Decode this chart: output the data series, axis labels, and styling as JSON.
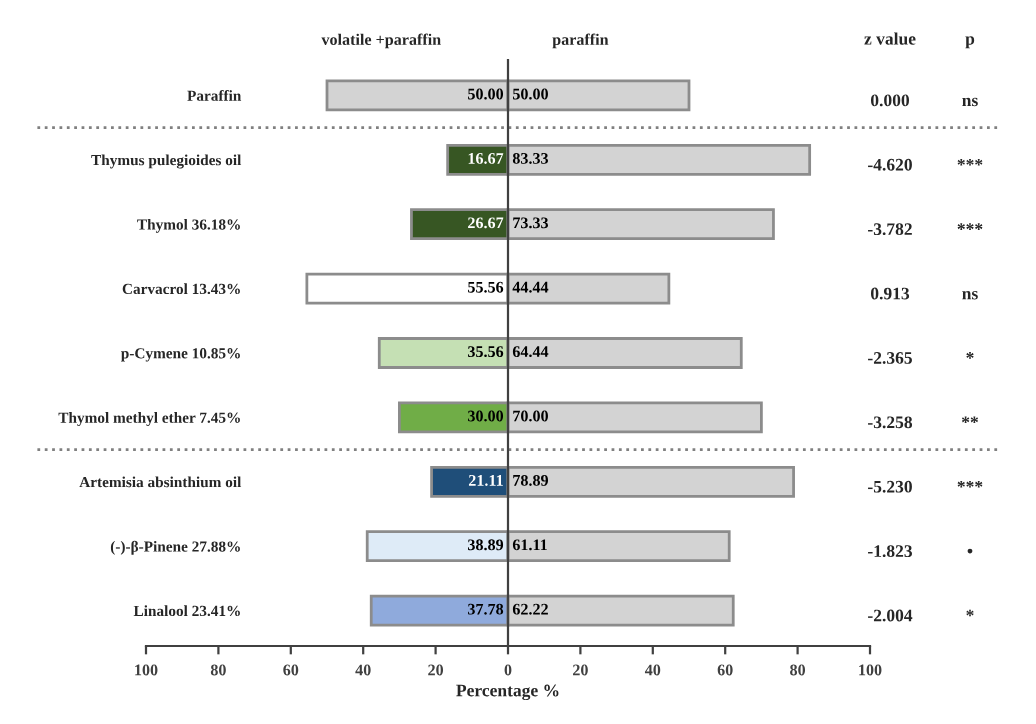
{
  "chart_data": {
    "type": "bar",
    "orientation": "horizontal",
    "legend": false,
    "grid": false,
    "xlabel": "Percentage %",
    "categories": [
      "Paraffin",
      "Thymus pulegioides oil",
      "Thymol 36.18%",
      "Carvacrol 13.43%",
      "p-Cymene 10.85%",
      "Thymol methyl ether 7.45%",
      "Artemisia absinthium oil",
      "(-)-β-Pinene 27.88%",
      "Linalool 23.41%"
    ],
    "series": [
      {
        "name": "volatile +paraffin",
        "colors": [
          "#d3d3d3",
          "#375623",
          "#375623",
          "#ffffff",
          "#c5e0b4",
          "#70ad47",
          "#1f4e79",
          "#deebf7",
          "#8faadc"
        ],
        "values": [
          50.0,
          16.67,
          26.67,
          55.56,
          35.56,
          30.0,
          21.11,
          38.89,
          37.78
        ],
        "base": [
          -50.0,
          -16.67,
          -26.67,
          -55.56,
          -35.56,
          -30.0,
          -21.11,
          -38.89,
          -37.78
        ],
        "value_labels": [
          "50.00",
          "16.67",
          "26.67",
          "55.56",
          "35.56",
          "30.00",
          "21.11",
          "38.89",
          "37.78"
        ]
      },
      {
        "name": "paraffin",
        "color": "#d3d3d3",
        "values": [
          50.0,
          83.33,
          73.33,
          44.44,
          64.44,
          70.0,
          78.89,
          61.11,
          62.22
        ],
        "value_labels": [
          "50.00",
          "83.33",
          "73.33",
          "44.44",
          "64.44",
          "70.00",
          "78.89",
          "61.11",
          "62.22"
        ]
      }
    ],
    "xlim": [
      -100,
      100
    ],
    "xticks": [
      {
        "value": -100,
        "label": "100"
      },
      {
        "value": -80,
        "label": "80"
      },
      {
        "value": -60,
        "label": "60"
      },
      {
        "value": -40,
        "label": "40"
      },
      {
        "value": -20,
        "label": "20"
      },
      0,
      20,
      40,
      60,
      80,
      100
    ],
    "annotations": [
      "z value",
      "p",
      "0.000",
      "ns",
      "-4.620",
      "***",
      "-3.782",
      "***",
      "0.913",
      "ns",
      "-2.365",
      "*",
      "-3.258",
      "**",
      "-5.230",
      "***",
      "-1.823",
      "•",
      "-2.004",
      "*"
    ]
  }
}
